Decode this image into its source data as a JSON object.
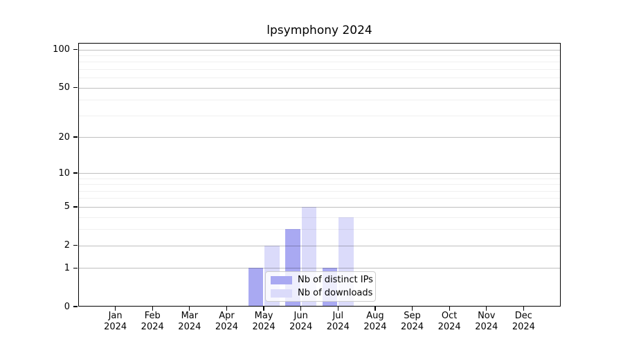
{
  "title": "lpsymphony 2024",
  "legend": {
    "items": [
      {
        "label": "Nb of distinct IPs"
      },
      {
        "label": "Nb of downloads"
      }
    ]
  },
  "chart_data": {
    "type": "bar",
    "title": "lpsymphony 2024",
    "categories": [
      "Jan",
      "Feb",
      "Mar",
      "Apr",
      "May",
      "Jun",
      "Jul",
      "Aug",
      "Sep",
      "Oct",
      "Nov",
      "Dec"
    ],
    "x_year_label": "2024",
    "series": [
      {
        "name": "Nb of distinct IPs",
        "color": "#a9a9f2",
        "values": [
          0,
          0,
          0,
          0,
          1,
          3,
          1,
          0,
          0,
          0,
          0,
          0
        ]
      },
      {
        "name": "Nb of downloads",
        "color": "#dbdbfa",
        "values": [
          0,
          0,
          0,
          0,
          2,
          5,
          4,
          0,
          0,
          0,
          0,
          0
        ]
      }
    ],
    "yscale": "log1p",
    "ylabel": "",
    "xlabel": "",
    "yticks": [
      0,
      1,
      2,
      5,
      10,
      20,
      50,
      100
    ],
    "minor_gridlines": [
      3,
      4,
      6,
      7,
      8,
      9,
      30,
      40,
      60,
      70,
      80,
      90
    ],
    "ylim": [
      0,
      113
    ],
    "grid": "on",
    "legend_position": "lower center",
    "colors": {
      "major_grid": "rgba(0,0,0,0.25)",
      "minor_grid": "rgba(0,0,0,0.06)",
      "axis": "#000000",
      "background": "#ffffff"
    }
  }
}
